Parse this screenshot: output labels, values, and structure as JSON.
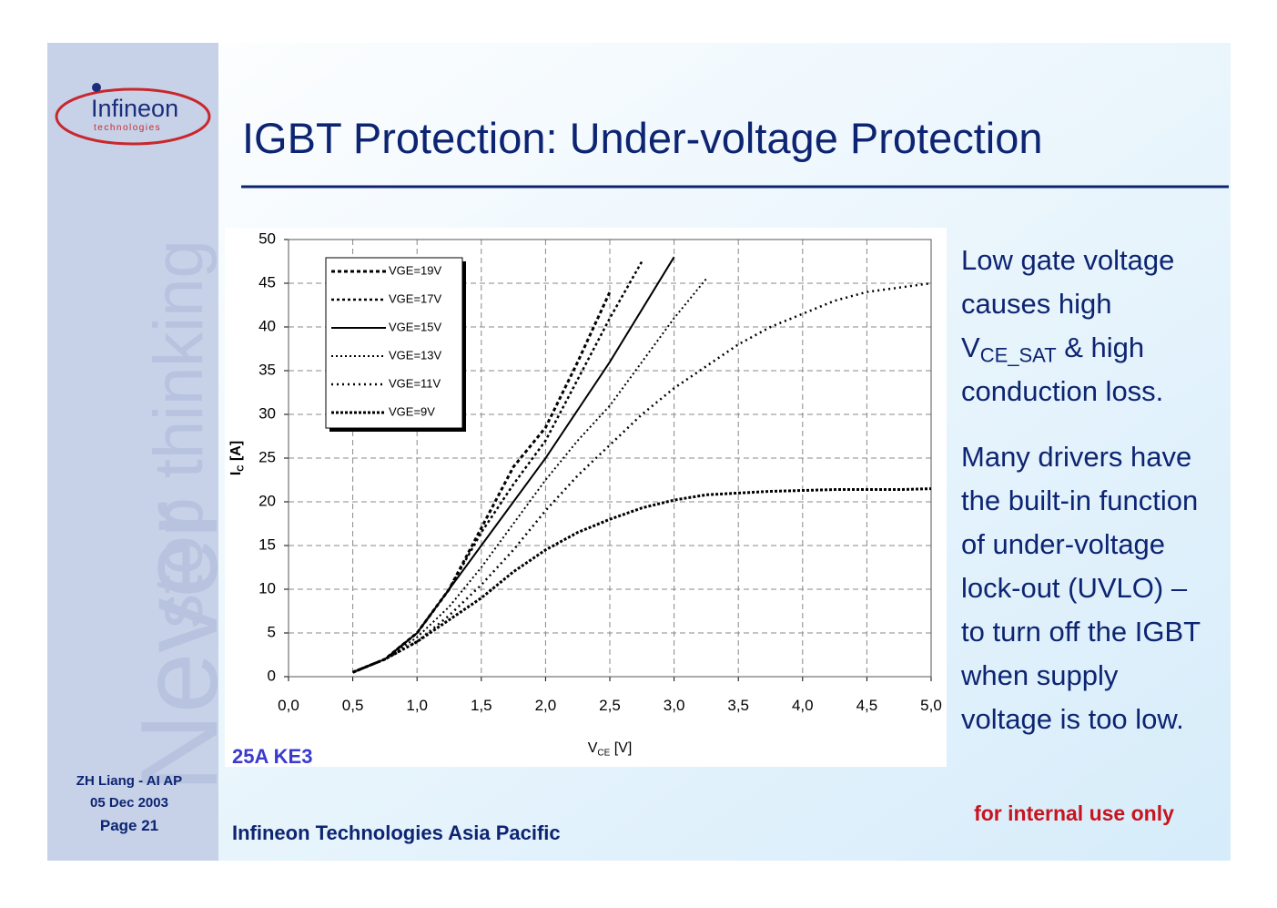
{
  "slide": {
    "title": "IGBT Protection: Under-voltage Protection",
    "logo": {
      "name": "Infineon",
      "tagline": "technologies"
    },
    "watermark": {
      "big": "Never",
      "small": "stop thinking"
    },
    "notes": [
      [
        "Low gate voltage",
        "causes high",
        {
          "base": "V",
          "sub": "CE_SAT",
          "rest": " & high"
        },
        "conduction loss."
      ],
      [
        "Many drivers have",
        "the built-in function",
        "of under-voltage",
        "lock-out (UVLO) –",
        "to turn off the IGBT",
        "when supply",
        "voltage is too low."
      ]
    ],
    "footer": {
      "author": "ZH Liang - AI AP",
      "date": "05 Dec 2003",
      "page": "Page 21",
      "company": "Infineon Technologies Asia Pacific",
      "notice": "for internal use only"
    }
  },
  "chart_data": {
    "type": "line",
    "annotation": "25A KE3",
    "xlabel": {
      "base": "V",
      "sub": "CE",
      "rest": " [V]"
    },
    "ylabel": {
      "base": "I",
      "sub": "C",
      "rest": " [A]"
    },
    "x": [
      0.5,
      0.75,
      1.0,
      1.25,
      1.5,
      1.75,
      2.0,
      2.25,
      2.5,
      2.75,
      3.0,
      3.25,
      3.5,
      3.75,
      4.0,
      4.25,
      4.5,
      4.75,
      5.0
    ],
    "xlim": [
      0,
      5
    ],
    "xticks": [
      {
        "value": 0,
        "label": "0,0"
      },
      {
        "value": 0.5,
        "label": "0,5"
      },
      {
        "value": 1,
        "label": "1,0"
      },
      {
        "value": 1.5,
        "label": "1,5"
      },
      {
        "value": 2,
        "label": "2,0"
      },
      {
        "value": 2.5,
        "label": "2,5"
      },
      {
        "value": 3,
        "label": "3,0"
      },
      {
        "value": 3.5,
        "label": "3,5"
      },
      {
        "value": 4,
        "label": "4,0"
      },
      {
        "value": 4.5,
        "label": "4,5"
      },
      {
        "value": 5,
        "label": "5,0"
      }
    ],
    "ylim": [
      0,
      50
    ],
    "yticks": [
      0,
      5,
      10,
      15,
      20,
      25,
      30,
      35,
      40,
      45,
      50
    ],
    "grid": true,
    "legend": "upper left",
    "series": [
      {
        "name": "VGE=19V",
        "color": "#000000",
        "values": [
          0.5,
          2,
          5,
          10,
          17,
          24,
          28.5,
          36,
          44,
          null,
          null,
          null,
          null,
          null,
          null,
          null,
          null,
          null,
          null
        ]
      },
      {
        "name": "VGE=17V",
        "color": "#000000",
        "values": [
          0.5,
          2,
          5,
          10,
          16.5,
          22,
          27,
          34,
          41,
          47.5,
          null,
          null,
          null,
          null,
          null,
          null,
          null,
          null,
          null
        ]
      },
      {
        "name": "VGE=15V",
        "color": "#000000",
        "values": [
          0.5,
          2,
          5,
          10,
          15,
          20,
          25,
          30.5,
          36,
          42,
          48,
          null,
          null,
          null,
          null,
          null,
          null,
          null,
          null
        ]
      },
      {
        "name": "VGE=13V",
        "color": "#000000",
        "values": [
          0.5,
          2,
          4.5,
          8,
          12.5,
          17.5,
          22.5,
          27,
          31,
          36,
          41,
          45.5,
          null,
          null,
          null,
          null,
          null,
          null,
          null
        ]
      },
      {
        "name": "VGE=11V",
        "color": "#000000",
        "values": [
          0.5,
          2,
          4,
          7,
          10.5,
          14.5,
          19,
          23,
          26.5,
          30,
          33,
          35.5,
          38,
          40,
          41.5,
          43,
          44,
          44.5,
          45
        ]
      },
      {
        "name": "VGE=9V",
        "color": "#000000",
        "values": [
          0.5,
          2,
          4,
          6.5,
          9,
          12,
          14.5,
          16.5,
          18,
          19.3,
          20.2,
          20.8,
          21,
          21.2,
          21.3,
          21.4,
          21.4,
          21.4,
          21.5
        ]
      }
    ]
  }
}
